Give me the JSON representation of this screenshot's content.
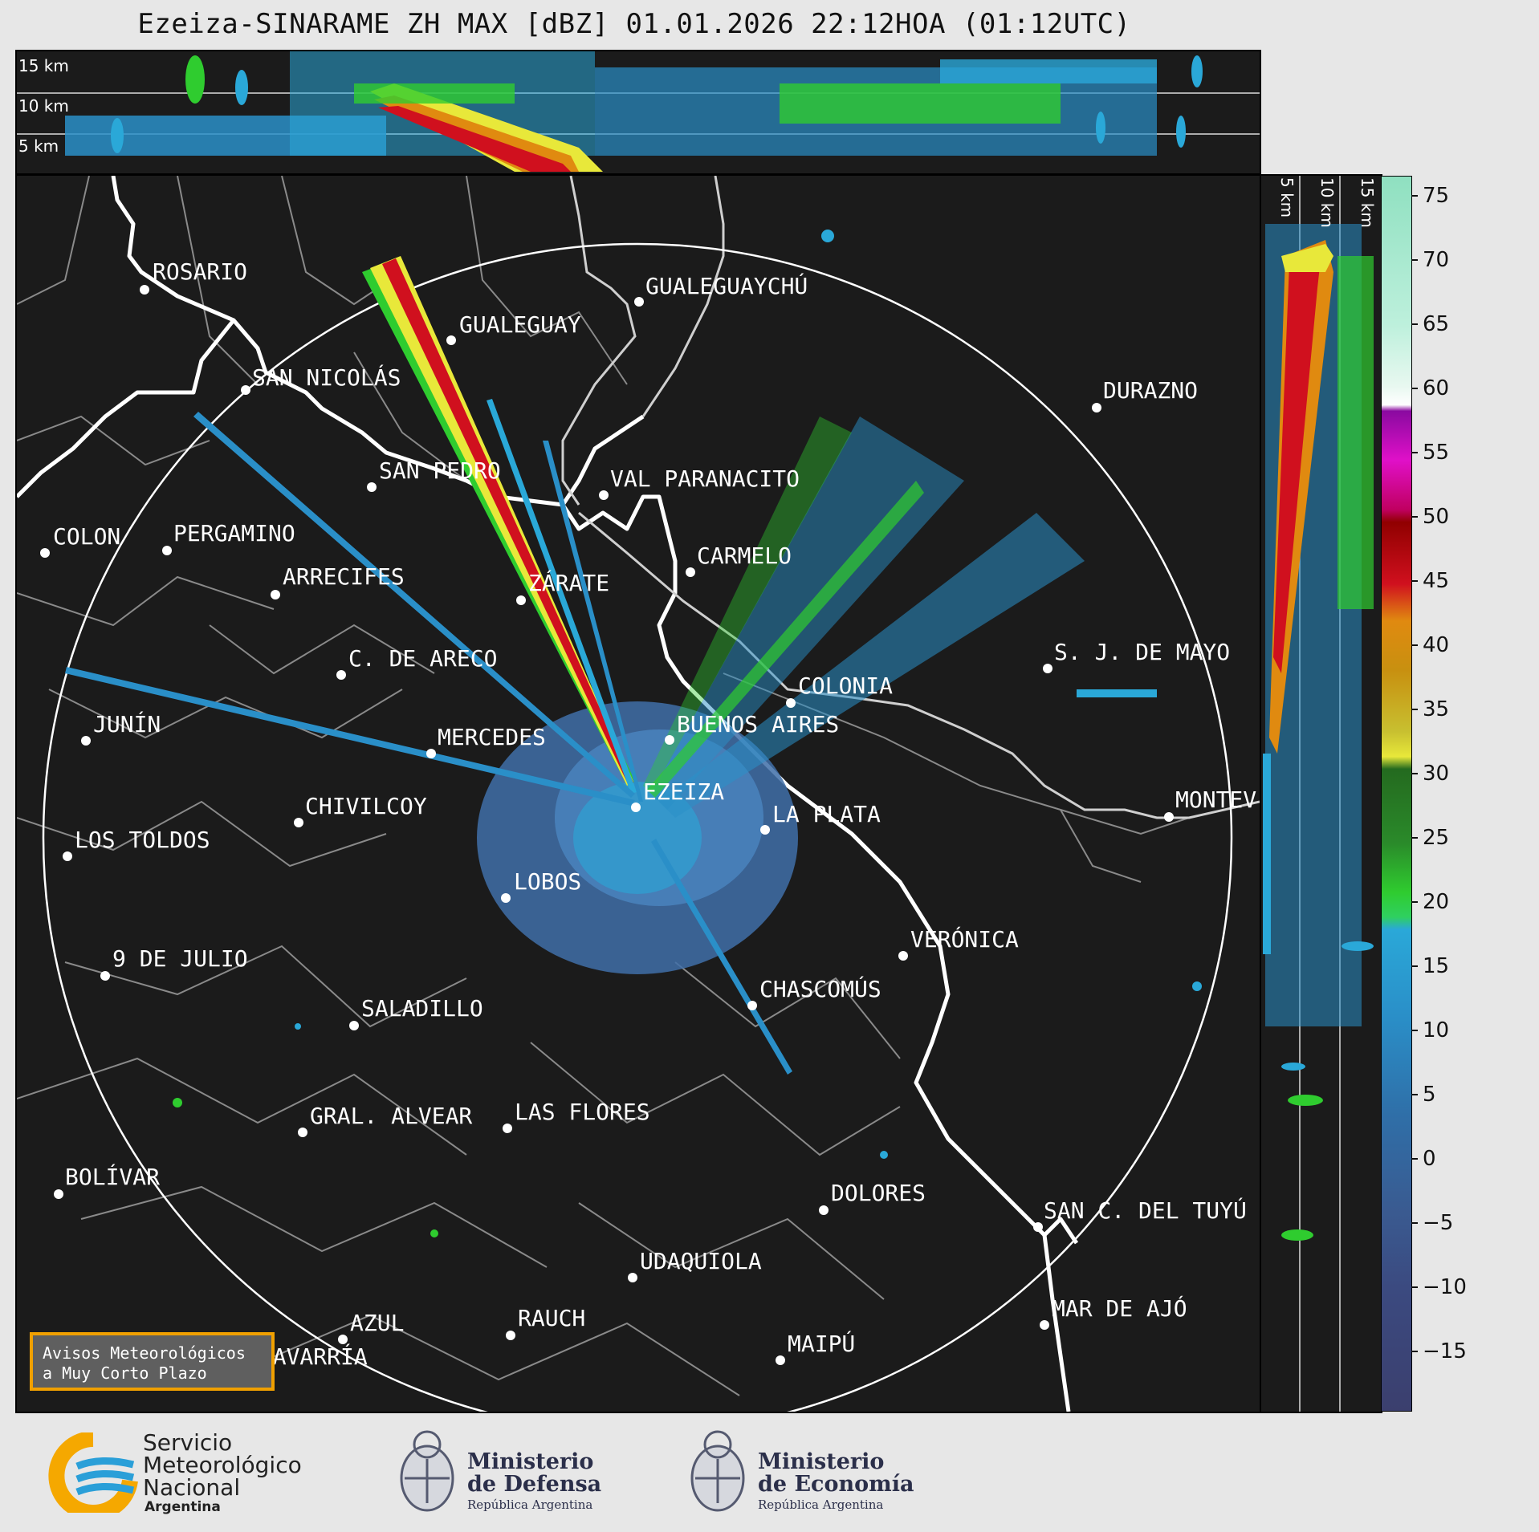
{
  "title": "Ezeiza-SINARAME ZH MAX [dBZ] 01.01.2026 22:12HOA (01:12UTC)",
  "top_panel": {
    "km_labels": [
      "15 km",
      "10 km",
      "5 km"
    ]
  },
  "side_panel": {
    "km_labels": [
      "5 km",
      "10 km",
      "15 km"
    ]
  },
  "colorbar": {
    "ticks": [
      "75",
      "70",
      "65",
      "60",
      "55",
      "50",
      "45",
      "40",
      "35",
      "30",
      "25",
      "20",
      "15",
      "10",
      "5",
      "0",
      "−5",
      "−10",
      "−15"
    ],
    "colors": {
      "blue_low": "#3b3f6e",
      "blue": "#3a78b0",
      "cyan": "#2aa8d8",
      "green": "#2fcc2f",
      "dark_green": "#246a1f",
      "yellow": "#e8e83a",
      "orange": "#e08a10",
      "red": "#d0101e",
      "magenta": "#e010c8",
      "purple": "#8a0aa0",
      "white": "#ffffff",
      "mint": "#8fe0c0"
    }
  },
  "cities": [
    {
      "name": "ROSARIO"
    },
    {
      "name": "GUALEGUAYCHÚ"
    },
    {
      "name": "GUALEGUAY"
    },
    {
      "name": "SAN NICOLÁS"
    },
    {
      "name": "DURAZNO"
    },
    {
      "name": "SAN PEDRO"
    },
    {
      "name": "VAL PARANACITO"
    },
    {
      "name": "COLON"
    },
    {
      "name": "PERGAMINO"
    },
    {
      "name": "CARMELO"
    },
    {
      "name": "ARRECIFES"
    },
    {
      "name": "ZÁRATE"
    },
    {
      "name": "S. J. DE MAYO"
    },
    {
      "name": "C. DE ARECO"
    },
    {
      "name": "COLONIA"
    },
    {
      "name": "JUNÍN"
    },
    {
      "name": "BUENOS AIRES"
    },
    {
      "name": "MERCEDES"
    },
    {
      "name": "EZEIZA"
    },
    {
      "name": "MONTEV"
    },
    {
      "name": "CHIVILCOY"
    },
    {
      "name": "LA PLATA"
    },
    {
      "name": "LOS TOLDOS"
    },
    {
      "name": "LOBOS"
    },
    {
      "name": "VERÓNICA"
    },
    {
      "name": "9 DE JULIO"
    },
    {
      "name": "CHASCOMÚS"
    },
    {
      "name": "SALADILLO"
    },
    {
      "name": "GRAL. ALVEAR"
    },
    {
      "name": "LAS FLORES"
    },
    {
      "name": "BOLÍVAR"
    },
    {
      "name": "DOLORES"
    },
    {
      "name": "SAN C. DEL TUYÚ"
    },
    {
      "name": "UDAQUIOLA"
    },
    {
      "name": "MAR DE AJÓ"
    },
    {
      "name": "AZUL"
    },
    {
      "name": "RAUCH"
    },
    {
      "name": "MAIPÚ"
    },
    {
      "name": "OLAVARRÍA"
    }
  ],
  "warning_box": {
    "line1": "Avisos Meteorológicos",
    "line2": "a Muy Corto Plazo"
  },
  "logos": {
    "smn": {
      "line1": "Servicio",
      "line2": "Meteorológico",
      "line3": "Nacional",
      "line4": "Argentina"
    },
    "defensa": {
      "line1": "Ministerio",
      "line2": "de Defensa",
      "line3": "República Argentina"
    },
    "economia": {
      "line1": "Ministerio",
      "line2": "de Economía",
      "line3": "República Argentina"
    }
  }
}
